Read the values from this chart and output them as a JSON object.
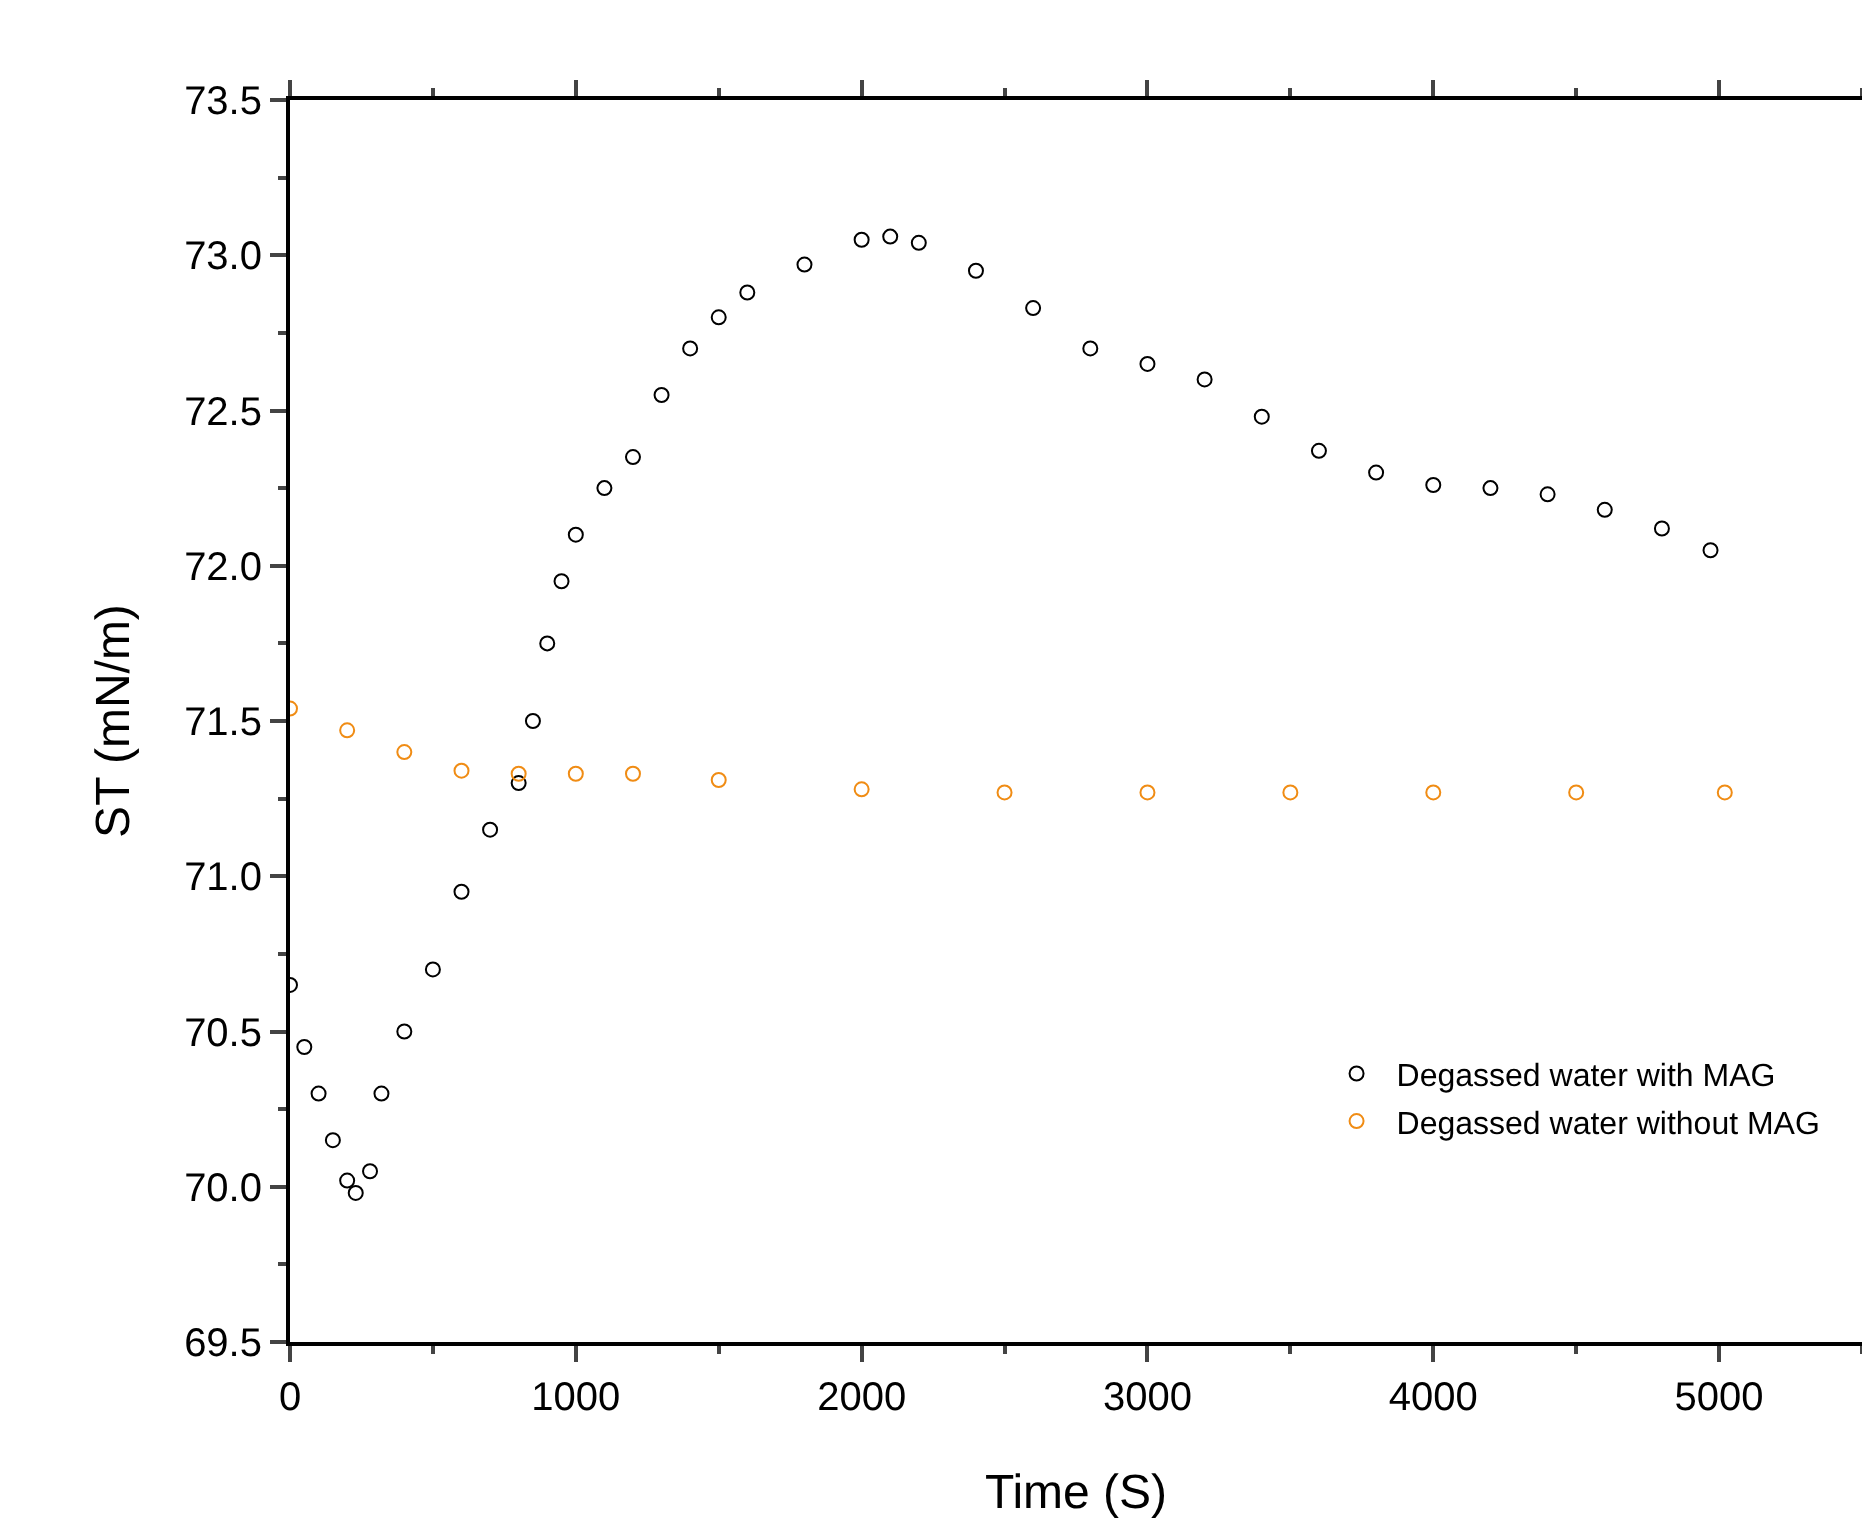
{
  "chart_data": {
    "type": "scatter",
    "xlabel": "Time (S)",
    "ylabel": "ST (mN/m)",
    "xlim": [
      0,
      5500
    ],
    "xticks": [
      0,
      1000,
      2000,
      3000,
      4000,
      5000
    ],
    "ylim": [
      69.5,
      73.5
    ],
    "yticks": [
      69.5,
      {
        "value": 70,
        "label": "70.0"
      },
      70.5,
      {
        "value": 71,
        "label": "71.0"
      },
      71.5,
      {
        "value": 72,
        "label": "72.0"
      },
      72.5,
      {
        "value": 73,
        "label": "73.0"
      },
      73.5
    ],
    "marker": "circle",
    "grid": false,
    "legend": "bottom right",
    "series": [
      {
        "name": "Degassed water with MAG",
        "color": "#000000",
        "x": [
          0,
          50,
          100,
          150,
          200,
          230,
          280,
          320,
          400,
          500,
          600,
          700,
          800,
          850,
          900,
          950,
          1000,
          1100,
          1200,
          1300,
          1400,
          1500,
          1600,
          1800,
          2000,
          2100,
          2200,
          2400,
          2600,
          2800,
          3000,
          3200,
          3400,
          3600,
          3800,
          4000,
          4200,
          4400,
          4600,
          4800,
          4970
        ],
        "values": [
          70.65,
          70.45,
          70.3,
          70.15,
          70.02,
          69.98,
          70.05,
          70.3,
          70.5,
          70.7,
          70.95,
          71.15,
          71.3,
          71.5,
          71.75,
          71.95,
          72.1,
          72.25,
          72.35,
          72.55,
          72.7,
          72.8,
          72.88,
          72.97,
          73.05,
          73.06,
          73.04,
          72.95,
          72.83,
          72.7,
          72.65,
          72.6,
          72.48,
          72.37,
          72.3,
          72.26,
          72.25,
          72.23,
          72.18,
          72.12,
          72.05
        ]
      },
      {
        "name": "Degassed water without MAG",
        "color": "#f08c14",
        "x": [
          0,
          200,
          400,
          600,
          800,
          1000,
          1200,
          1500,
          2000,
          2500,
          3000,
          3500,
          4000,
          4500,
          5020
        ],
        "values": [
          71.54,
          71.47,
          71.4,
          71.34,
          71.33,
          71.33,
          71.33,
          71.31,
          71.28,
          71.27,
          71.27,
          71.27,
          71.27,
          71.27,
          71.27
        ]
      }
    ]
  }
}
